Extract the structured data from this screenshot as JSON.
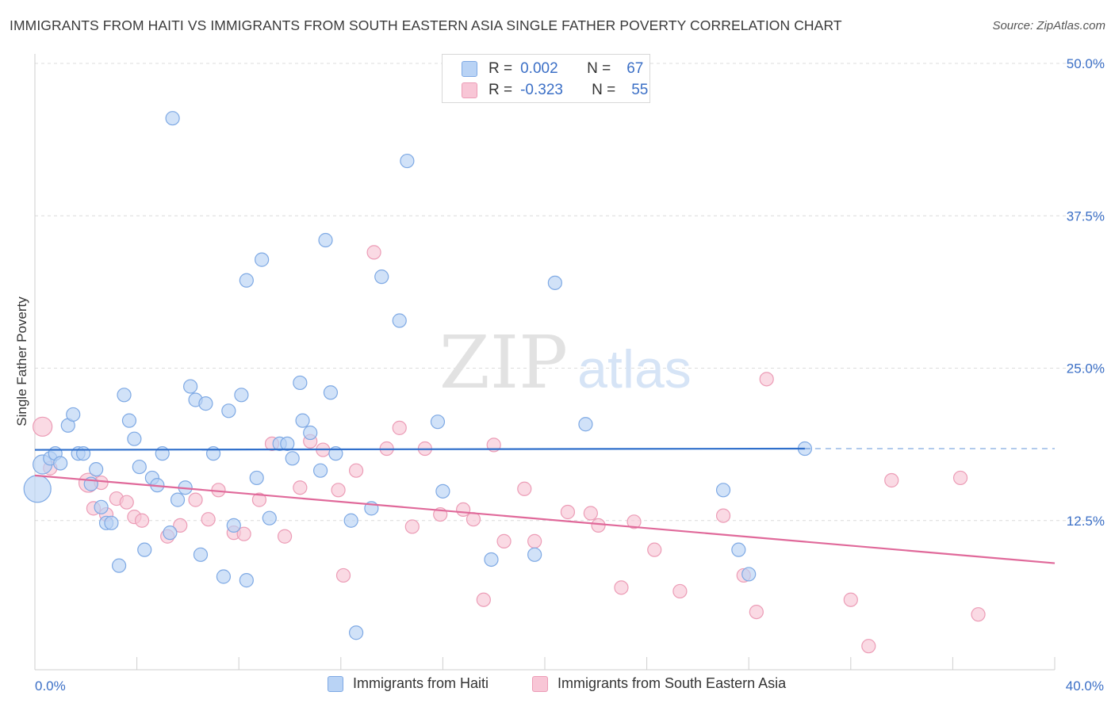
{
  "header": {
    "title": "IMMIGRANTS FROM HAITI VS IMMIGRANTS FROM SOUTH EASTERN ASIA SINGLE FATHER POVERTY CORRELATION CHART",
    "source": "Source: ZipAtlas.com"
  },
  "legend": {
    "r_label": "R =",
    "n_label": "N =",
    "series1": {
      "r": "0.002",
      "n": "67"
    },
    "series2": {
      "r": "-0.323",
      "n": "55"
    }
  },
  "bottom_legend": {
    "series1": "Immigrants from Haiti",
    "series2": "Immigrants from South Eastern Asia"
  },
  "watermark": {
    "zip": "ZIP",
    "atlas": "atlas"
  },
  "colors": {
    "blue_fill": "#b9d3f5",
    "blue_stroke": "#7ea9e4",
    "blue_line": "#2f6fcb",
    "pink_fill": "#f8c6d6",
    "pink_stroke": "#ec9cb6",
    "pink_line": "#e0699a",
    "tick_text": "#3b6fc6"
  },
  "chart_data": {
    "type": "scatter",
    "title": "IMMIGRANTS FROM HAITI VS IMMIGRANTS FROM SOUTH EASTERN ASIA SINGLE FATHER POVERTY CORRELATION CHART",
    "xlabel": "",
    "ylabel": "Single Father Poverty",
    "xlim": [
      0,
      40
    ],
    "ylim": [
      0,
      50
    ],
    "x_tick_labels": [
      {
        "value": 0,
        "label": "0.0%"
      },
      {
        "value": 40,
        "label": "40.0%"
      }
    ],
    "y_tick_labels": [
      {
        "value": 12.5,
        "label": "12.5%"
      },
      {
        "value": 25,
        "label": "25.0%"
      },
      {
        "value": 37.5,
        "label": "37.5%"
      },
      {
        "value": 50,
        "label": "50.0%"
      }
    ],
    "series": [
      {
        "name": "Immigrants from Haiti",
        "color": "blue",
        "trend": {
          "x": [
            0,
            30.2
          ],
          "y": [
            18.3,
            18.4
          ],
          "dashed_to": 40
        },
        "points": [
          [
            0.1,
            15.1,
            3
          ],
          [
            0.3,
            17.1,
            2
          ],
          [
            0.6,
            17.6,
            1
          ],
          [
            0.8,
            18.0,
            1
          ],
          [
            1.0,
            17.2,
            1
          ],
          [
            1.3,
            20.3,
            1
          ],
          [
            1.5,
            21.2,
            1
          ],
          [
            1.7,
            18.0,
            1
          ],
          [
            1.9,
            18.0,
            1
          ],
          [
            2.2,
            15.5,
            1
          ],
          [
            2.4,
            16.7,
            1
          ],
          [
            2.6,
            13.6,
            1
          ],
          [
            2.8,
            12.3,
            1
          ],
          [
            3.0,
            12.3,
            1
          ],
          [
            3.3,
            8.8,
            1
          ],
          [
            3.5,
            22.8,
            1
          ],
          [
            3.7,
            20.7,
            1
          ],
          [
            3.9,
            19.2,
            1
          ],
          [
            4.1,
            16.9,
            1
          ],
          [
            4.3,
            10.1,
            1
          ],
          [
            4.6,
            16.0,
            1
          ],
          [
            4.8,
            15.4,
            1
          ],
          [
            5.0,
            18.0,
            1
          ],
          [
            5.3,
            11.5,
            1
          ],
          [
            5.4,
            45.5,
            1
          ],
          [
            5.6,
            14.2,
            1
          ],
          [
            5.9,
            15.2,
            1
          ],
          [
            6.1,
            23.5,
            1
          ],
          [
            6.3,
            22.4,
            1
          ],
          [
            6.5,
            9.7,
            1
          ],
          [
            6.7,
            22.1,
            1
          ],
          [
            7.0,
            18.0,
            1
          ],
          [
            7.4,
            7.9,
            1
          ],
          [
            7.6,
            21.5,
            1
          ],
          [
            7.8,
            12.1,
            1
          ],
          [
            8.1,
            22.8,
            1
          ],
          [
            8.3,
            7.6,
            1
          ],
          [
            8.3,
            32.2,
            1
          ],
          [
            8.7,
            16.0,
            1
          ],
          [
            8.9,
            33.9,
            1
          ],
          [
            9.2,
            12.7,
            1
          ],
          [
            9.6,
            18.8,
            1
          ],
          [
            9.9,
            18.8,
            1
          ],
          [
            10.1,
            17.6,
            1
          ],
          [
            10.4,
            23.8,
            1
          ],
          [
            10.5,
            20.7,
            1
          ],
          [
            10.8,
            19.7,
            1
          ],
          [
            11.2,
            16.6,
            1
          ],
          [
            11.4,
            35.5,
            1
          ],
          [
            11.6,
            23.0,
            1
          ],
          [
            11.8,
            18.0,
            1
          ],
          [
            12.4,
            12.5,
            1
          ],
          [
            12.6,
            3.3,
            1
          ],
          [
            13.2,
            13.5,
            1
          ],
          [
            13.6,
            32.5,
            1
          ],
          [
            14.3,
            28.9,
            1
          ],
          [
            14.6,
            42.0,
            1
          ],
          [
            15.8,
            20.6,
            1
          ],
          [
            16.0,
            14.9,
            1
          ],
          [
            17.9,
            9.3,
            1
          ],
          [
            19.6,
            9.7,
            1
          ],
          [
            20.4,
            32.0,
            1
          ],
          [
            21.6,
            20.4,
            1
          ],
          [
            27.0,
            15.0,
            1
          ],
          [
            27.6,
            10.1,
            1
          ],
          [
            28.0,
            8.1,
            1
          ],
          [
            30.2,
            18.4,
            1
          ]
        ]
      },
      {
        "name": "Immigrants from South Eastern Asia",
        "color": "pink",
        "trend": {
          "x": [
            0,
            40
          ],
          "y": [
            16.2,
            9.0
          ]
        },
        "points": [
          [
            0.3,
            20.2,
            2
          ],
          [
            0.6,
            16.8,
            1
          ],
          [
            2.1,
            15.6,
            2
          ],
          [
            2.6,
            15.6,
            1
          ],
          [
            2.3,
            13.5,
            1
          ],
          [
            2.8,
            13.0,
            1
          ],
          [
            3.2,
            14.3,
            1
          ],
          [
            3.6,
            14.0,
            1
          ],
          [
            3.9,
            12.8,
            1
          ],
          [
            4.2,
            12.5,
            1
          ],
          [
            5.2,
            11.2,
            1
          ],
          [
            5.7,
            12.1,
            1
          ],
          [
            6.3,
            14.2,
            1
          ],
          [
            6.8,
            12.6,
            1
          ],
          [
            7.2,
            15.0,
            1
          ],
          [
            7.8,
            11.5,
            1
          ],
          [
            8.2,
            11.4,
            1
          ],
          [
            8.8,
            14.2,
            1
          ],
          [
            9.3,
            18.8,
            1
          ],
          [
            9.8,
            11.2,
            1
          ],
          [
            10.4,
            15.2,
            1
          ],
          [
            10.8,
            19.0,
            1
          ],
          [
            11.3,
            18.3,
            1
          ],
          [
            11.9,
            15.0,
            1
          ],
          [
            12.1,
            8.0,
            1
          ],
          [
            12.6,
            16.6,
            1
          ],
          [
            13.3,
            34.5,
            1
          ],
          [
            13.8,
            18.4,
            1
          ],
          [
            14.3,
            20.1,
            1
          ],
          [
            14.8,
            12.0,
            1
          ],
          [
            15.3,
            18.4,
            1
          ],
          [
            15.9,
            13.0,
            1
          ],
          [
            16.8,
            13.4,
            1
          ],
          [
            17.2,
            12.6,
            1
          ],
          [
            17.6,
            6.0,
            1
          ],
          [
            18.0,
            18.7,
            1
          ],
          [
            18.4,
            10.8,
            1
          ],
          [
            19.2,
            15.1,
            1
          ],
          [
            19.6,
            10.8,
            1
          ],
          [
            20.9,
            13.2,
            1
          ],
          [
            21.8,
            13.1,
            1
          ],
          [
            22.1,
            12.1,
            1
          ],
          [
            23.0,
            7.0,
            1
          ],
          [
            23.5,
            12.4,
            1
          ],
          [
            24.3,
            10.1,
            1
          ],
          [
            25.3,
            6.7,
            1
          ],
          [
            27.0,
            12.9,
            1
          ],
          [
            27.8,
            8.0,
            1
          ],
          [
            28.3,
            5.0,
            1
          ],
          [
            28.7,
            24.1,
            1
          ],
          [
            32.0,
            6.0,
            1
          ],
          [
            32.7,
            2.2,
            1
          ],
          [
            33.6,
            15.8,
            1
          ],
          [
            36.3,
            16.0,
            1
          ],
          [
            37.0,
            4.8,
            1
          ]
        ]
      }
    ]
  }
}
